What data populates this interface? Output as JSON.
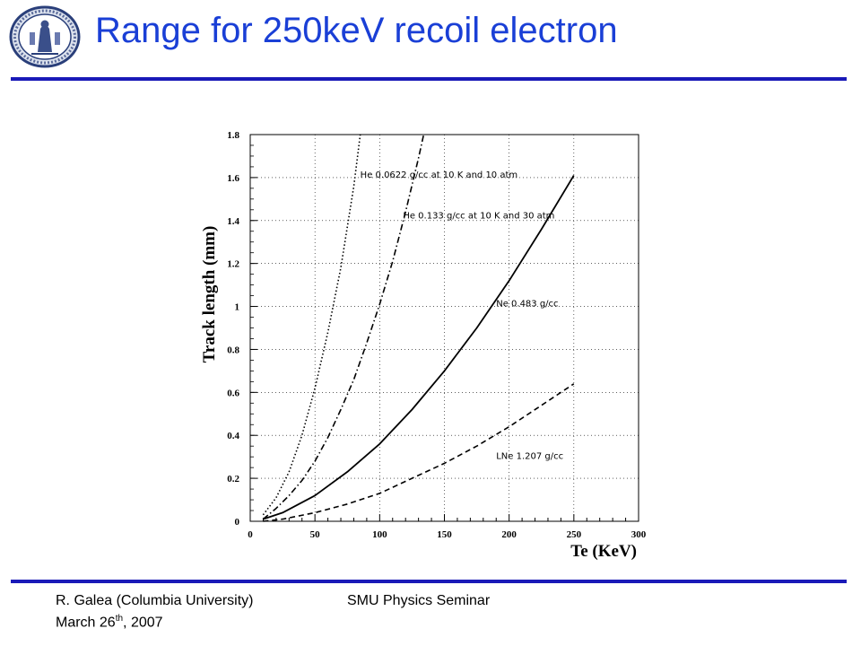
{
  "slide": {
    "title": "Range for 250keV recoil electron"
  },
  "footer": {
    "author": "R. Galea (Columbia University)",
    "date_prefix": "March 26",
    "date_sup": "th",
    "date_suffix": ", 2007",
    "event": "SMU Physics Seminar"
  },
  "colors": {
    "title": "#1a3fd6",
    "rule": "#1a1ab8",
    "curve": "#000000"
  },
  "icons": {
    "seal": "columbia-university-seal-icon"
  },
  "chart_data": {
    "type": "line",
    "xlabel": "Te (KeV)",
    "ylabel": "Track length (mm)",
    "xlim": [
      0,
      300
    ],
    "ylim": [
      0,
      1.8
    ],
    "xticks": [
      "0",
      "50",
      "100",
      "150",
      "200",
      "250",
      "300"
    ],
    "yticks": [
      "0",
      "0.2",
      "0.4",
      "0.6",
      "0.8",
      "1",
      "1.2",
      "1.4",
      "1.6",
      "1.8"
    ],
    "grid": true,
    "series": [
      {
        "name": "He 0.0622 g/cc at 10 K and 10 atm",
        "style": "dotted",
        "x": [
          10,
          20,
          30,
          40,
          50,
          60,
          70,
          80,
          85
        ],
        "y": [
          0.03,
          0.11,
          0.23,
          0.4,
          0.62,
          0.88,
          1.18,
          1.56,
          1.8
        ]
      },
      {
        "name": "He 0.133 g/cc at 10 K and 30 atm",
        "style": "dashdot",
        "x": [
          10,
          20,
          30,
          40,
          50,
          60,
          70,
          80,
          90,
          100,
          110,
          120,
          130,
          134
        ],
        "y": [
          0.01,
          0.06,
          0.12,
          0.19,
          0.28,
          0.39,
          0.52,
          0.66,
          0.83,
          1.01,
          1.21,
          1.44,
          1.69,
          1.8
        ]
      },
      {
        "name": "Ne 0.483 g/cc",
        "style": "solid",
        "x": [
          10,
          25,
          50,
          75,
          100,
          125,
          150,
          175,
          200,
          225,
          250
        ],
        "y": [
          0.01,
          0.04,
          0.12,
          0.23,
          0.36,
          0.52,
          0.7,
          0.9,
          1.12,
          1.36,
          1.61
        ]
      },
      {
        "name": "LNe 1.207 g/cc",
        "style": "dashed",
        "x": [
          10,
          25,
          50,
          75,
          100,
          125,
          150,
          175,
          200,
          225,
          250
        ],
        "y": [
          0.0,
          0.01,
          0.04,
          0.08,
          0.13,
          0.2,
          0.27,
          0.35,
          0.44,
          0.54,
          0.64
        ]
      }
    ],
    "annotations": [
      {
        "text": "He 0.0622 g/cc at 10 K and 10 atm",
        "x": 85,
        "y": 1.6
      },
      {
        "text": "He 0.133 g/cc at 10 K and 30 atm",
        "x": 118,
        "y": 1.41
      },
      {
        "text": "Ne 0.483 g/cc",
        "x": 190,
        "y": 1.0
      },
      {
        "text": "LNe 1.207 g/cc",
        "x": 190,
        "y": 0.29
      }
    ]
  }
}
